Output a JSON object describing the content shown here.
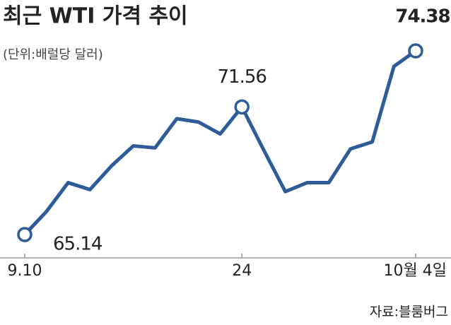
{
  "chart_data": {
    "type": "line",
    "title": "최근 WTI 가격 추이",
    "subtitle": "(단위:배럴당 달러)",
    "source": "자료:블룸버그",
    "categories": [
      "9.10",
      null,
      null,
      null,
      null,
      null,
      null,
      null,
      null,
      null,
      "24",
      null,
      null,
      null,
      null,
      null,
      null,
      null,
      "10월 4일"
    ],
    "series": [
      {
        "name": "WTI",
        "color": "#2e5c98",
        "values": [
          65.14,
          66.3,
          67.75,
          67.4,
          68.6,
          69.6,
          69.5,
          70.97,
          70.8,
          70.2,
          71.56,
          69.4,
          67.3,
          67.75,
          67.75,
          69.45,
          69.8,
          73.6,
          74.38
        ]
      }
    ]
  }
}
